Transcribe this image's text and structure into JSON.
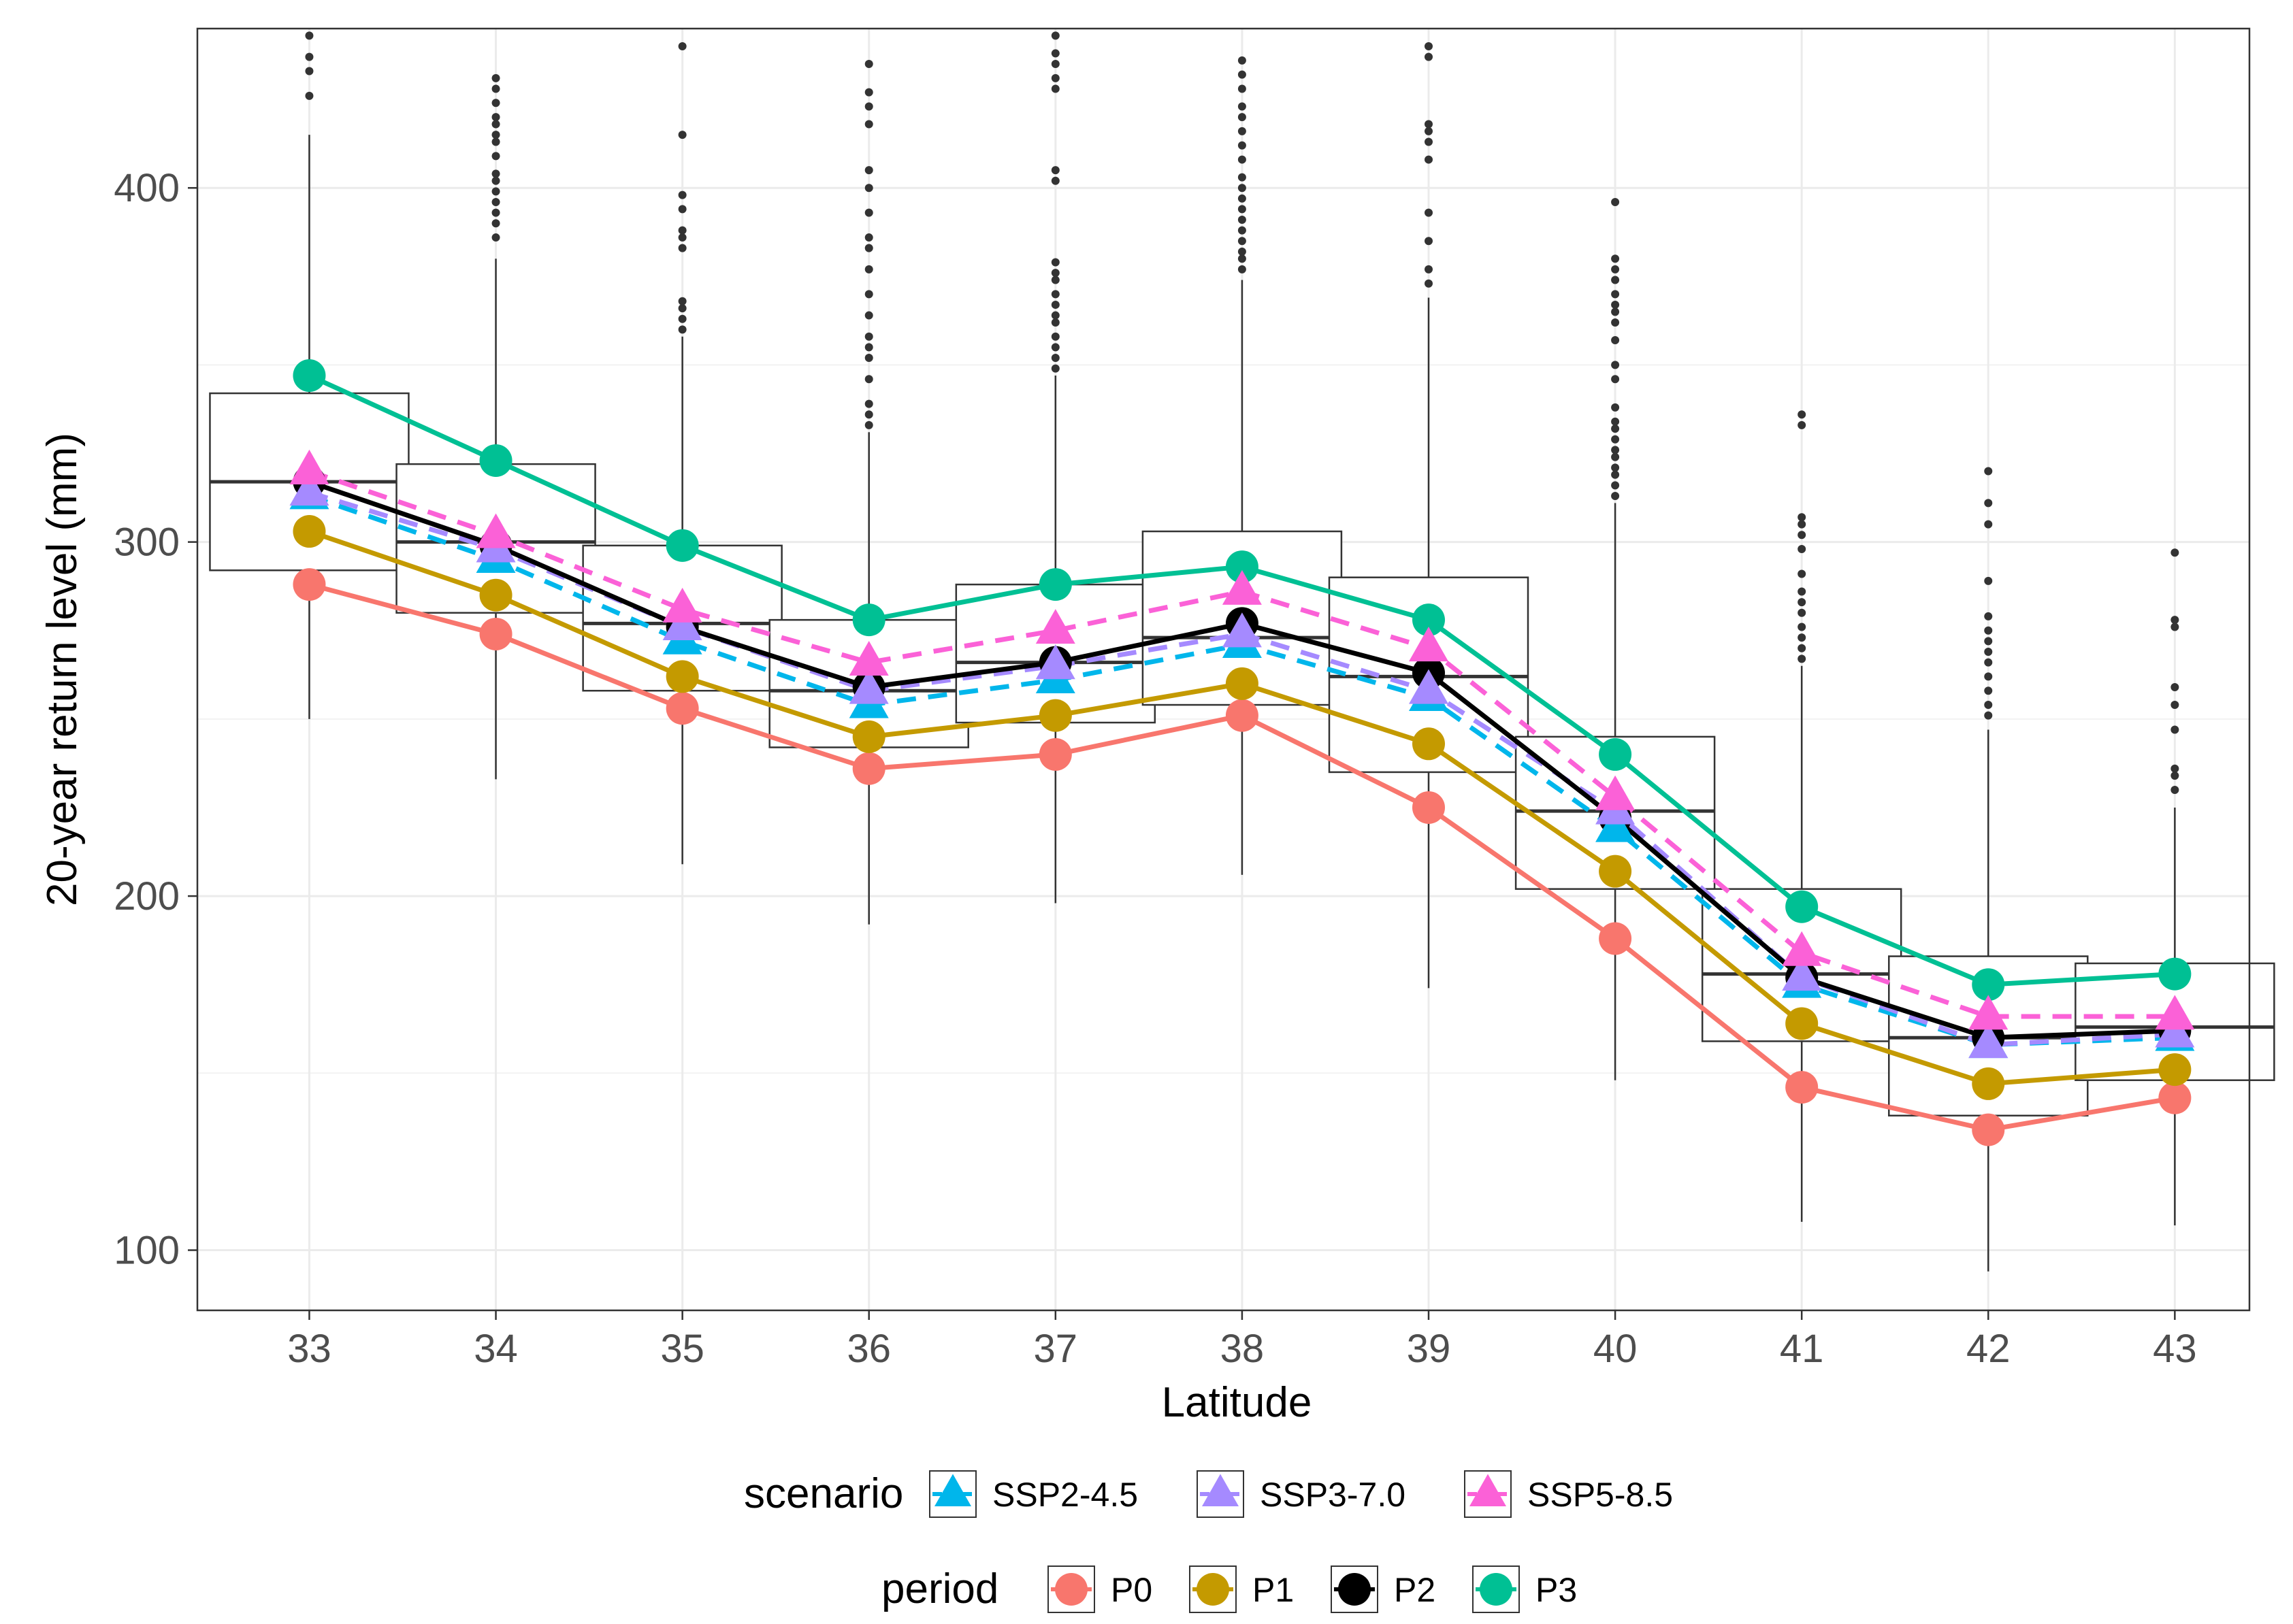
{
  "chart_data": {
    "type": "line",
    "title": "",
    "xlabel": "Latitude",
    "ylabel": "20-year return level (mm)",
    "x": [
      33,
      34,
      35,
      36,
      37,
      38,
      39,
      40,
      41,
      42,
      43
    ],
    "x_ticks": [
      "33",
      "34",
      "35",
      "36",
      "37",
      "38",
      "39",
      "40",
      "41",
      "42",
      "43"
    ],
    "y_ticks": [
      "100",
      "200",
      "300",
      "400"
    ],
    "y_tick_values": [
      100,
      200,
      300,
      400
    ],
    "xlim": [
      32.4,
      43.4
    ],
    "ylim": [
      83,
      445
    ],
    "grid": true,
    "legend_position": "bottom",
    "boxplots": [
      {
        "x": 33,
        "q1": 292,
        "median": 317,
        "q3": 342,
        "whisker_low": 250,
        "whisker_high": 415,
        "outliers": [
          426,
          433,
          437,
          443
        ]
      },
      {
        "x": 34,
        "q1": 280,
        "median": 300,
        "q3": 322,
        "whisker_low": 233,
        "whisker_high": 380,
        "outliers": [
          386,
          390,
          393,
          396,
          399,
          402,
          404,
          409,
          413,
          415,
          418,
          420,
          424,
          428,
          431
        ]
      },
      {
        "x": 35,
        "q1": 258,
        "median": 277,
        "q3": 299,
        "whisker_low": 209,
        "whisker_high": 358,
        "outliers": [
          360,
          363,
          366,
          368,
          383,
          386,
          388,
          394,
          398,
          415,
          440
        ]
      },
      {
        "x": 36,
        "q1": 242,
        "median": 258,
        "q3": 278,
        "whisker_low": 192,
        "whisker_high": 331,
        "outliers": [
          333,
          336,
          339,
          346,
          352,
          355,
          358,
          364,
          370,
          377,
          383,
          386,
          393,
          400,
          405,
          418,
          423,
          427,
          435
        ]
      },
      {
        "x": 37,
        "q1": 249,
        "median": 266,
        "q3": 288,
        "whisker_low": 198,
        "whisker_high": 347,
        "outliers": [
          349,
          352,
          355,
          358,
          362,
          364,
          367,
          370,
          374,
          376,
          379,
          402,
          405,
          428,
          431,
          435,
          438,
          443
        ]
      },
      {
        "x": 38,
        "q1": 254,
        "median": 273,
        "q3": 303,
        "whisker_low": 206,
        "whisker_high": 374,
        "outliers": [
          377,
          380,
          382,
          385,
          388,
          391,
          394,
          397,
          400,
          403,
          408,
          412,
          416,
          420,
          423,
          428,
          432,
          436
        ]
      },
      {
        "x": 39,
        "q1": 235,
        "median": 262,
        "q3": 290,
        "whisker_low": 174,
        "whisker_high": 369,
        "outliers": [
          373,
          377,
          385,
          393,
          408,
          413,
          416,
          418,
          437,
          440
        ]
      },
      {
        "x": 40,
        "q1": 202,
        "median": 224,
        "q3": 245,
        "whisker_low": 148,
        "whisker_high": 311,
        "outliers": [
          313,
          316,
          319,
          321,
          324,
          326,
          329,
          332,
          334,
          338,
          346,
          350,
          357,
          362,
          365,
          367,
          370,
          374,
          377,
          380,
          396
        ]
      },
      {
        "x": 41,
        "q1": 159,
        "median": 178,
        "q3": 202,
        "whisker_low": 108,
        "whisker_high": 265,
        "outliers": [
          267,
          270,
          273,
          276,
          280,
          283,
          286,
          291,
          298,
          302,
          305,
          307,
          333,
          336
        ]
      },
      {
        "x": 42,
        "q1": 138,
        "median": 160,
        "q3": 183,
        "whisker_low": 94,
        "whisker_high": 247,
        "outliers": [
          251,
          254,
          258,
          262,
          266,
          269,
          272,
          275,
          279,
          289,
          305,
          311,
          320
        ]
      },
      {
        "x": 43,
        "q1": 148,
        "median": 163,
        "q3": 181,
        "whisker_low": 107,
        "whisker_high": 225,
        "outliers": [
          230,
          234,
          236,
          247,
          254,
          259,
          276,
          278,
          297
        ]
      }
    ],
    "period_series": [
      {
        "name": "P0",
        "color": "#F8766D",
        "values": [
          288,
          274,
          253,
          236,
          240,
          251,
          225,
          188,
          146,
          134,
          143
        ]
      },
      {
        "name": "P1",
        "color": "#C49A00",
        "values": [
          303,
          285,
          262,
          245,
          251,
          260,
          243,
          207,
          164,
          147,
          151
        ]
      },
      {
        "name": "P2",
        "color": "#000000",
        "values": [
          317,
          299,
          276,
          259,
          266,
          277,
          263,
          222,
          177,
          160,
          162
        ]
      },
      {
        "name": "P3",
        "color": "#00C094",
        "values": [
          347,
          323,
          299,
          278,
          288,
          293,
          278,
          240,
          197,
          175,
          178
        ]
      }
    ],
    "scenario_series": [
      {
        "name": "SSP2-4.5",
        "color": "#00B6EB",
        "values": [
          313,
          295,
          272,
          254,
          261,
          271,
          256,
          219,
          175,
          158,
          160
        ]
      },
      {
        "name": "SSP3-7.0",
        "color": "#A58AFF",
        "values": [
          314,
          298,
          276,
          258,
          265,
          274,
          258,
          224,
          177,
          158,
          161
        ]
      },
      {
        "name": "SSP5-8.5",
        "color": "#FB61D7",
        "values": [
          320,
          302,
          281,
          266,
          275,
          286,
          270,
          228,
          184,
          166,
          166
        ]
      }
    ]
  },
  "legend": {
    "scenario_title": "scenario",
    "scenario_items": [
      {
        "label": "SSP2-4.5",
        "color": "#00B6EB"
      },
      {
        "label": "SSP3-7.0",
        "color": "#A58AFF"
      },
      {
        "label": "SSP5-8.5",
        "color": "#FB61D7"
      }
    ],
    "period_title": "period",
    "period_items": [
      {
        "label": "P0",
        "color": "#F8766D"
      },
      {
        "label": "P1",
        "color": "#C49A00"
      },
      {
        "label": "P2",
        "color": "#000000"
      },
      {
        "label": "P3",
        "color": "#00C094"
      }
    ]
  }
}
